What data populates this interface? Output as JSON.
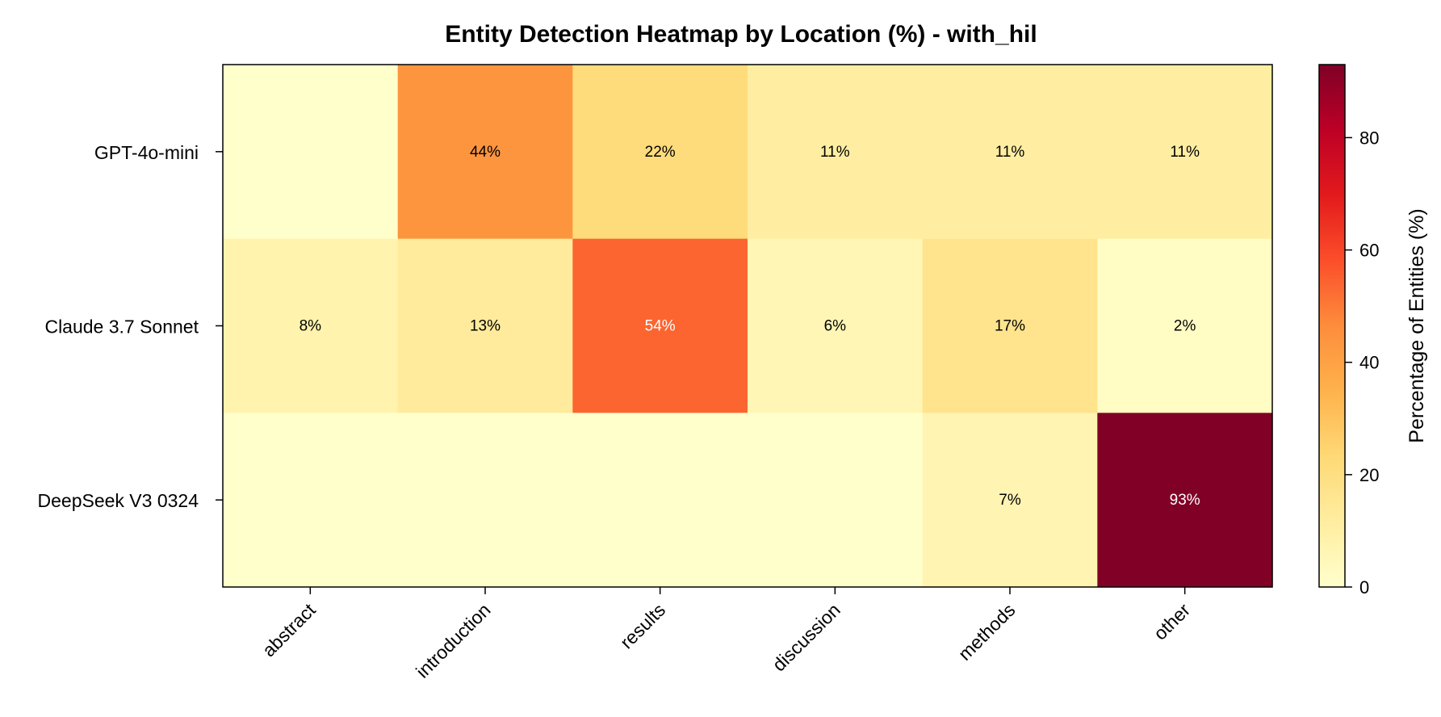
{
  "chart_data": {
    "type": "heatmap",
    "title": "Entity Detection Heatmap by Location (%) - with_hil",
    "x_categories": [
      "abstract",
      "introduction",
      "results",
      "discussion",
      "methods",
      "other"
    ],
    "y_categories": [
      "GPT-4o-mini",
      "Claude 3.7 Sonnet",
      "DeepSeek V3 0324"
    ],
    "values": [
      [
        0,
        44,
        22,
        11,
        11,
        11
      ],
      [
        8,
        13,
        54,
        6,
        17,
        2
      ],
      [
        0,
        0,
        0,
        0,
        7,
        93
      ]
    ],
    "cell_labels": [
      [
        "",
        "44%",
        "22%",
        "11%",
        "11%",
        "11%"
      ],
      [
        "8%",
        "13%",
        "54%",
        "6%",
        "17%",
        "2%"
      ],
      [
        "",
        "",
        "",
        "",
        "7%",
        "93%"
      ]
    ],
    "colormap": "YlOrRd",
    "colorbar": {
      "label": "Percentage of Entities (%)",
      "range": [
        0,
        93
      ],
      "ticks": [
        0,
        20,
        40,
        60,
        80
      ],
      "tick_labels": [
        "0",
        "20",
        "40",
        "60",
        "80"
      ]
    },
    "grid": false,
    "legend": "none"
  }
}
